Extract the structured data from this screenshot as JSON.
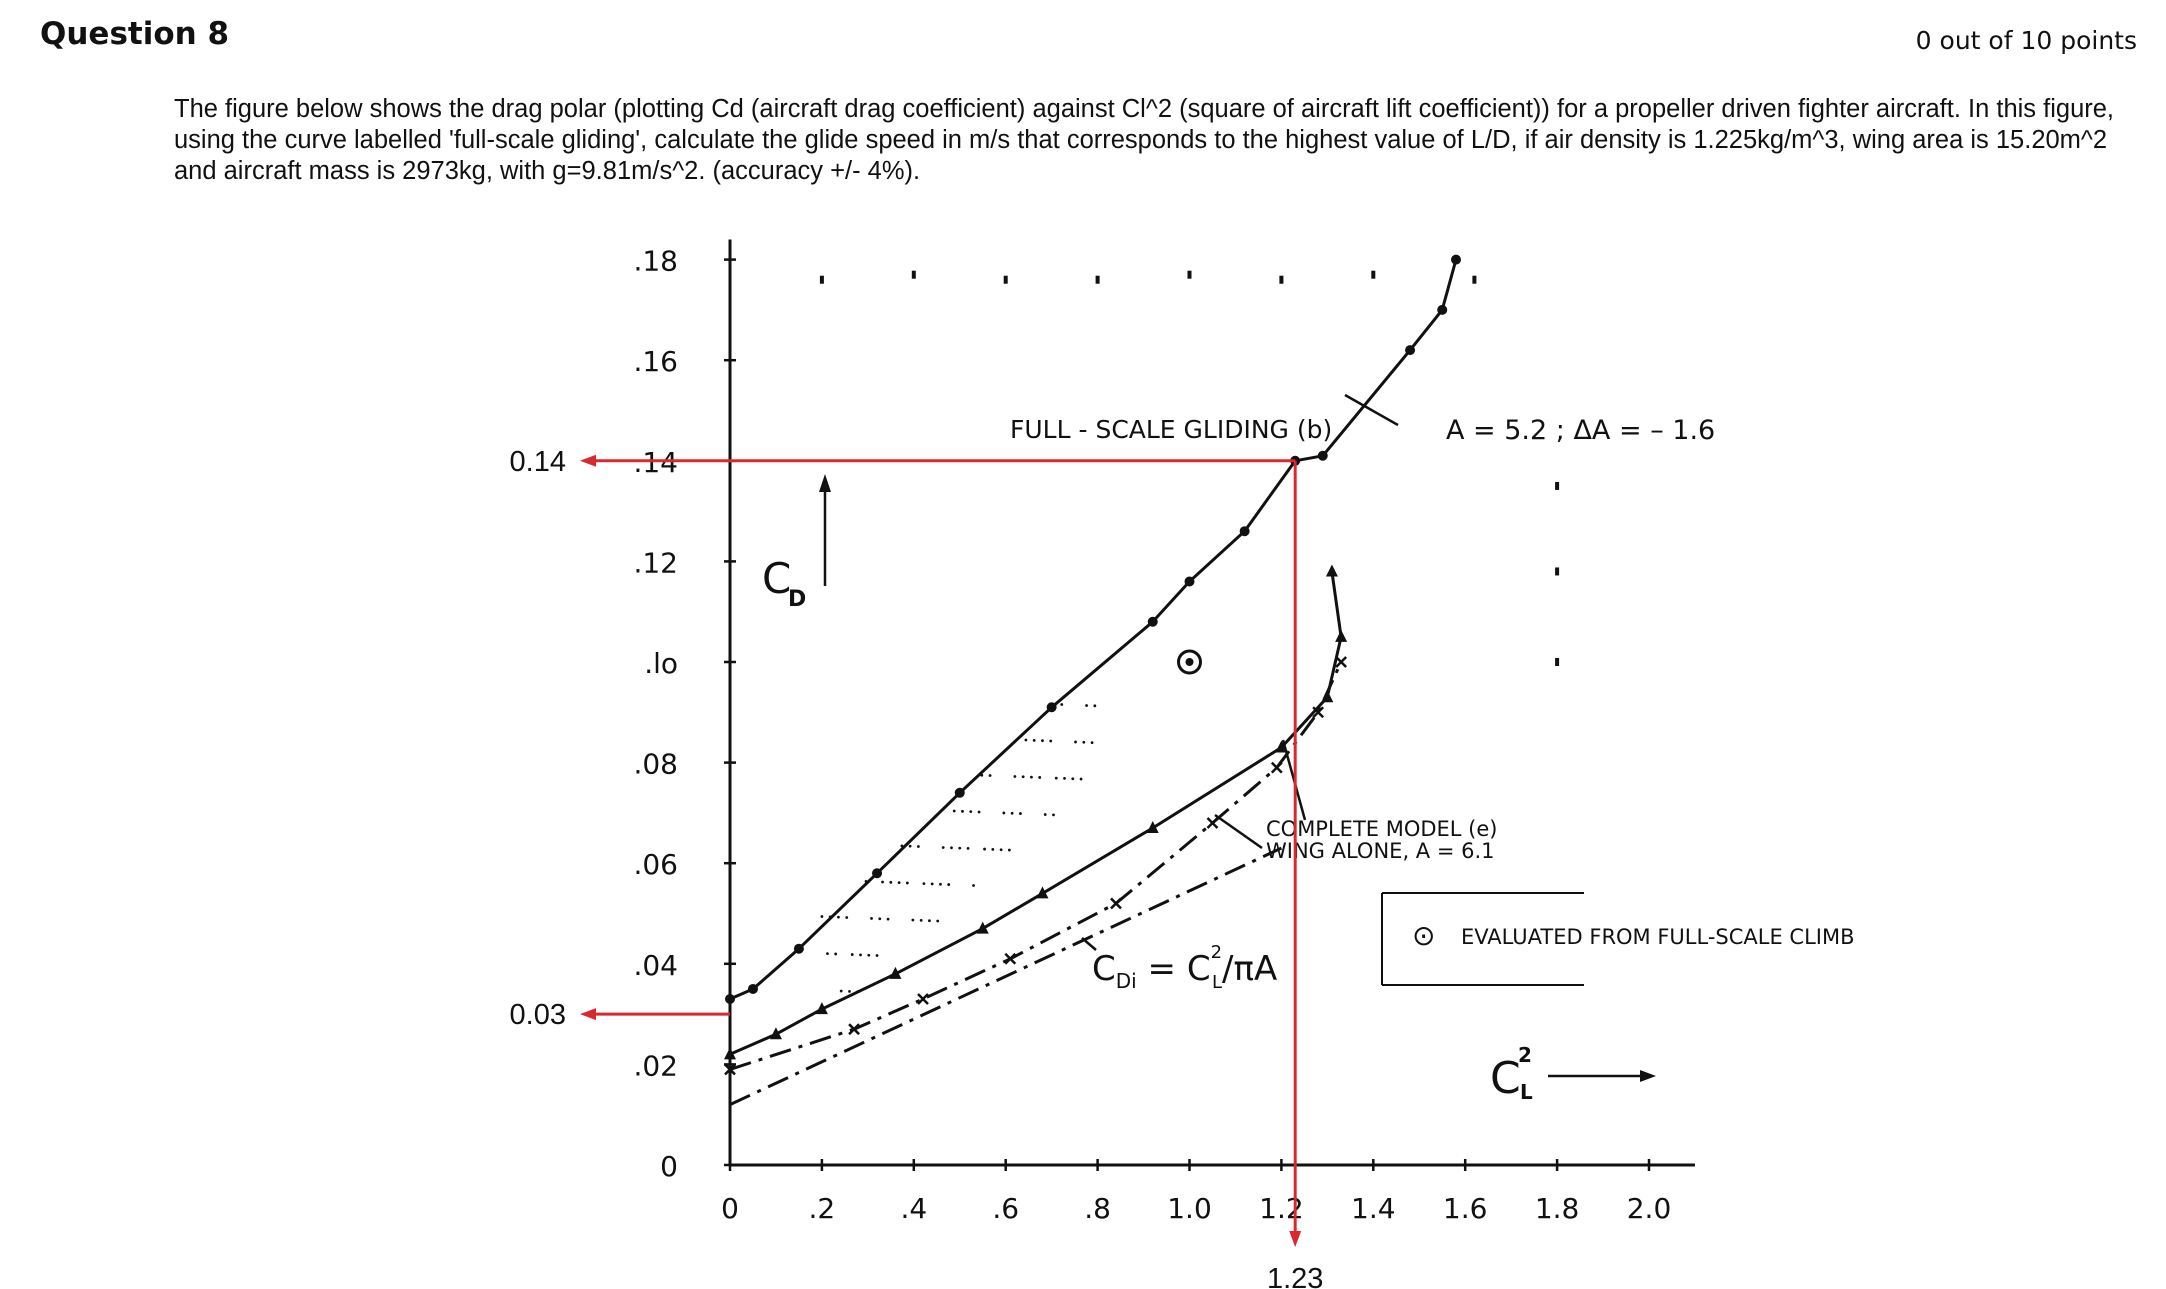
{
  "question": {
    "title": "Question 8",
    "points": "0 out of 10 points",
    "text": "The figure below shows the drag polar (plotting Cd (aircraft drag coefficient) against Cl^2 (square of aircraft lift coefficient)) for a propeller driven fighter aircraft. In this figure, using the curve labelled 'full-scale gliding', calculate the glide speed in m/s that corresponds to the highest value of L/D, if air density is 1.225kg/m^3, wing area is 15.20m^2 and aircraft mass is 2973kg, with g=9.81m/s^2. (accuracy +/- 4%)."
  },
  "chart_data": {
    "type": "line",
    "xlabel": "C",
    "xlabel_sup": "2",
    "xlabel_sub": "L",
    "ylabel": "C",
    "ylabel_sub": "D",
    "x_ticks": [
      "0",
      ".2",
      ".4",
      ".6",
      ".8",
      "1.0",
      "1.2",
      "1.4",
      "1.6",
      "1.8",
      "2.0"
    ],
    "y_ticks": [
      "0",
      ".02",
      ".04",
      ".06",
      ".08",
      ".lo",
      ".12",
      ".14",
      ".16",
      ".18"
    ],
    "xlim": [
      0,
      2.0
    ],
    "ylim": [
      0,
      0.18
    ],
    "annotations": {
      "full_scale": "FULL - SCALE   GLIDING  (b)",
      "aspect": "A = 5.2  ;  ΔA = – 1.6",
      "complete_model": "COMPLETE  MODEL  (e)",
      "wing_alone": "WING ALONE,  A = 6.1",
      "induced": "C",
      "induced_sub": "Di",
      "induced_rest": " = C",
      "induced_sup": "2",
      "induced_sub2": "L",
      "induced_tail": "/πA",
      "legend_marker": "⊙",
      "legend": "EVALUATED  FROM  FULL-SCALE  CLIMB"
    },
    "markers": {
      "y_upper": "0.14",
      "y_lower": "0.03",
      "x_value": "1.23"
    },
    "series": [
      {
        "name": "FULL - SCALE GLIDING (b)",
        "style": "solid",
        "marker": "dot",
        "points": [
          [
            0.0,
            0.033
          ],
          [
            0.05,
            0.035
          ],
          [
            0.15,
            0.043
          ],
          [
            0.32,
            0.058
          ],
          [
            0.5,
            0.074
          ],
          [
            0.7,
            0.091
          ],
          [
            0.92,
            0.108
          ],
          [
            1.0,
            0.116
          ],
          [
            1.12,
            0.126
          ],
          [
            1.23,
            0.14
          ],
          [
            1.29,
            0.141
          ],
          [
            1.48,
            0.162
          ],
          [
            1.55,
            0.17
          ],
          [
            1.58,
            0.18
          ]
        ]
      },
      {
        "name": "COMPLETE MODEL (e)",
        "style": "solid",
        "marker": "triangle",
        "points": [
          [
            0.0,
            0.022
          ],
          [
            0.1,
            0.026
          ],
          [
            0.2,
            0.031
          ],
          [
            0.36,
            0.038
          ],
          [
            0.55,
            0.047
          ],
          [
            0.68,
            0.054
          ],
          [
            0.92,
            0.067
          ],
          [
            1.2,
            0.083
          ],
          [
            1.3,
            0.093
          ],
          [
            1.33,
            0.105
          ],
          [
            1.31,
            0.118
          ]
        ]
      },
      {
        "name": "WING ALONE, A = 6.1",
        "style": "dash-dot",
        "marker": "x",
        "points": [
          [
            0.0,
            0.019
          ],
          [
            0.27,
            0.027
          ],
          [
            0.42,
            0.033
          ],
          [
            0.61,
            0.041
          ],
          [
            0.84,
            0.052
          ],
          [
            1.05,
            0.068
          ],
          [
            1.19,
            0.079
          ],
          [
            1.28,
            0.09
          ],
          [
            1.33,
            0.1
          ]
        ]
      },
      {
        "name": "C_Di = C_L^2 / πA",
        "style": "dash-dot",
        "marker": "none",
        "points": [
          [
            0.0,
            0.012
          ],
          [
            1.2,
            0.063
          ]
        ]
      },
      {
        "name": "EVALUATED FROM FULL-SCALE CLIMB",
        "style": "none",
        "marker": "circled-dot",
        "points": [
          [
            1.0,
            0.1
          ]
        ]
      }
    ]
  },
  "colors": {
    "ink": "#111111",
    "guide": "#d9282e"
  }
}
